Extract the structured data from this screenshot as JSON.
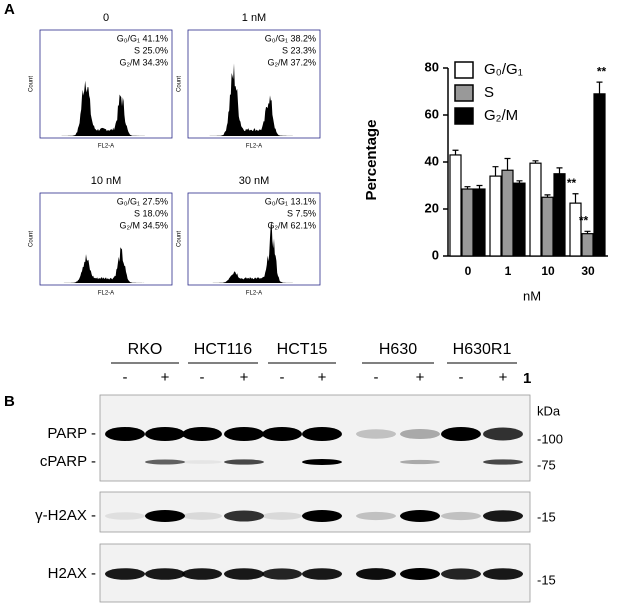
{
  "panel_labels": [
    "A",
    "B"
  ],
  "flow_panels": {
    "y_label": "Count",
    "x_label": "FL2-A",
    "panels": [
      {
        "title": "0",
        "lines": [
          "G₀/G₁ 41.1%",
          "S 25.0%",
          "G₂/M 34.3%"
        ]
      },
      {
        "title": "1 nM",
        "lines": [
          "G₀/G₁ 38.2%",
          "S 23.3%",
          "G₂/M 37.2%"
        ]
      },
      {
        "title": "10 nM",
        "lines": [
          "G₀/G₁ 27.5%",
          "S 18.0%",
          "G₂/M 34.5%"
        ]
      },
      {
        "title": "30 nM",
        "lines": [
          "G₀/G₁ 13.1%",
          "S 7.5%",
          "G₂/M 62.1%"
        ]
      }
    ]
  },
  "chart_data": {
    "type": "bar",
    "ylabel": "Percentage",
    "xlabel": "nM",
    "categories": [
      "0",
      "1",
      "10",
      "30"
    ],
    "series": [
      {
        "name": "G₀/G₁",
        "color": "#ffffff",
        "values": [
          43,
          34,
          39.5,
          22.5
        ],
        "errors": [
          2,
          4,
          1,
          4
        ],
        "annotations": [
          null,
          null,
          null,
          "**"
        ]
      },
      {
        "name": "S",
        "color": "#999999",
        "values": [
          28.5,
          36.5,
          25,
          9.5
        ],
        "errors": [
          1,
          5,
          1,
          1
        ],
        "annotations": [
          null,
          null,
          null,
          "**"
        ]
      },
      {
        "name": "G₂/M",
        "color": "#000000",
        "values": [
          28.5,
          31,
          35,
          69
        ],
        "errors": [
          1.5,
          1,
          2.5,
          5
        ],
        "annotations": [
          null,
          null,
          null,
          "**"
        ]
      }
    ],
    "ylim": [
      0,
      80
    ],
    "yticks": [
      0,
      20,
      40,
      60,
      80
    ]
  },
  "blot": {
    "cell_lines": [
      "RKO",
      "HCT116",
      "HCT15",
      "H630",
      "H630R1"
    ],
    "treatment": [
      "-",
      "+",
      "-",
      "+",
      "-",
      "+",
      "-",
      "+",
      "-",
      "+"
    ],
    "treatment_label": "1",
    "rows": [
      "PARP -",
      "cPARP -",
      "γ-H2AX -",
      "H2AX -"
    ],
    "markers": [
      "kDa",
      "-100",
      "-75",
      "-15",
      "-15"
    ]
  }
}
